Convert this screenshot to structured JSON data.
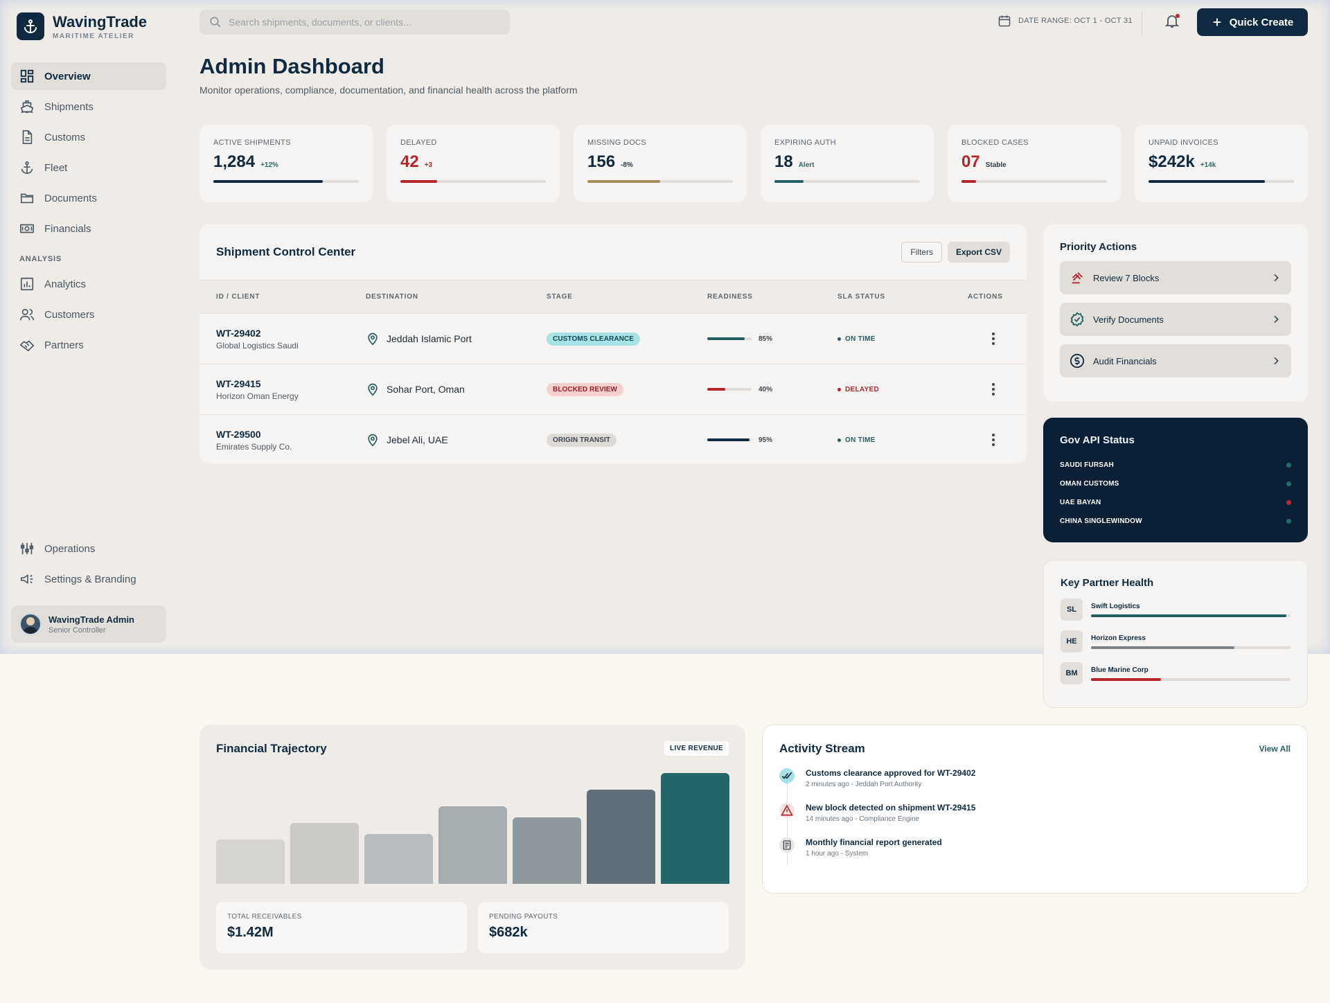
{
  "brand": {
    "name": "WavingTrade",
    "subtitle": "MARITIME ATELIER"
  },
  "sidebar": {
    "items": [
      {
        "label": "Overview",
        "icon": "dashboard-icon",
        "active": true
      },
      {
        "label": "Shipments",
        "icon": "ship-icon"
      },
      {
        "label": "Customs",
        "icon": "document-icon"
      },
      {
        "label": "Fleet",
        "icon": "anchor-icon"
      },
      {
        "label": "Documents",
        "icon": "folder-icon"
      },
      {
        "label": "Financials",
        "icon": "money-icon"
      }
    ],
    "section_label": "ANALYSIS",
    "analysis_items": [
      {
        "label": "Analytics",
        "icon": "chart-icon"
      },
      {
        "label": "Customers",
        "icon": "users-icon"
      },
      {
        "label": "Partners",
        "icon": "handshake-icon"
      }
    ],
    "bottom_items": [
      {
        "label": "Operations",
        "icon": "sliders-icon"
      },
      {
        "label": "Settings & Branding",
        "icon": "megaphone-icon"
      }
    ],
    "user": {
      "name": "WavingTrade Admin",
      "role": "Senior Controller"
    }
  },
  "topbar": {
    "search_placeholder": "Search shipments, documents, or clients...",
    "date_range": "DATE RANGE: OCT 1 - OCT 31",
    "quick_create": "Quick Create"
  },
  "page": {
    "title": "Admin Dashboard",
    "subtitle": "Monitor operations, compliance, documentation, and financial health across the platform"
  },
  "kpis": [
    {
      "label": "ACTIVE SHIPMENTS",
      "value": "1,284",
      "delta": "+12%",
      "progress": 0.75,
      "color": "#0f2a40"
    },
    {
      "label": "DELAYED",
      "value": "42",
      "delta": "+3",
      "progress": 0.25,
      "color": "#b3262b"
    },
    {
      "label": "MISSING DOCS",
      "value": "156",
      "delta": "-8%",
      "progress": 0.5,
      "color": "#a88b5c"
    },
    {
      "label": "EXPIRING AUTH",
      "value": "18",
      "delta": "Alert",
      "progress": 0.2,
      "color": "#245f63"
    },
    {
      "label": "BLOCKED CASES",
      "value": "07",
      "delta": "Stable",
      "progress": 0.1,
      "color": "#b3262b"
    },
    {
      "label": "UNPAID INVOICES",
      "value": "$242k",
      "delta": "+14k",
      "progress": 0.8,
      "color": "#0f2a40"
    }
  ],
  "control_center": {
    "title": "Shipment Control Center",
    "filters": "Filters",
    "export": "Export CSV",
    "columns": [
      "ID / CLIENT",
      "DESTINATION",
      "STAGE",
      "READINESS",
      "SLA STATUS",
      "ACTIONS"
    ],
    "rows": [
      {
        "id": "WT-29402",
        "client": "Global Logistics Saudi",
        "destination": "Jeddah Islamic Port",
        "stage": "CUSTOMS CLEARANCE",
        "readiness": 0.85,
        "readiness_label": "85%",
        "sla": "ON TIME"
      },
      {
        "id": "WT-29415",
        "client": "Horizon Oman Energy",
        "destination": "Sohar Port, Oman",
        "stage": "BLOCKED REVIEW",
        "readiness": 0.4,
        "readiness_label": "40%",
        "sla": "DELAYED"
      },
      {
        "id": "WT-29500",
        "client": "Emirates Supply Co.",
        "destination": "Jebel Ali, UAE",
        "stage": "ORIGIN TRANSIT",
        "readiness": 0.95,
        "readiness_label": "95%",
        "sla": "ON TIME"
      }
    ]
  },
  "priority_actions": {
    "title": "Priority Actions",
    "items": [
      {
        "label": "Review 7 Blocks",
        "icon": "gavel-icon"
      },
      {
        "label": "Verify Documents",
        "icon": "verified-badge-icon"
      },
      {
        "label": "Audit Financials",
        "icon": "dollar-circle-icon"
      }
    ]
  },
  "gov_api": {
    "title": "Gov API Status",
    "items": [
      {
        "label": "SAUDI FURSAH",
        "status_color": "#1f6f6d"
      },
      {
        "label": "OMAN CUSTOMS",
        "status_color": "#1f6f6d"
      },
      {
        "label": "UAE BAYAN",
        "status_color": "#c0282d"
      },
      {
        "label": "CHINA SINGLEWINDOW",
        "status_color": "#1f6f6d"
      }
    ]
  },
  "partner_health": {
    "title": "Key Partner Health",
    "items": [
      {
        "initials": "SL",
        "name": "Swift Logistics",
        "score": 0.98,
        "color": "#245f63"
      },
      {
        "initials": "HE",
        "name": "Horizon Express",
        "score": 0.72,
        "color": "#7b8288"
      },
      {
        "initials": "BM",
        "name": "Blue Marine Corp",
        "score": 0.35,
        "color": "#b3262b"
      }
    ]
  },
  "financial": {
    "title": "Financial Trajectory",
    "badge": "LIVE REVENUE",
    "chart_data": {
      "type": "bar",
      "values": [
        40,
        55,
        45,
        70,
        60,
        85,
        100
      ],
      "colors": [
        "#d5d3cf",
        "#cbcac6",
        "#b8bcbe",
        "#a5adb0",
        "#8f999d",
        "#5f6d79",
        "#236569"
      ]
    },
    "cards": [
      {
        "label": "TOTAL RECEIVABLES",
        "value": "$1.42M"
      },
      {
        "label": "PENDING PAYOUTS",
        "value": "$682k"
      }
    ]
  },
  "activity": {
    "title": "Activity Stream",
    "view_all": "View All",
    "items": [
      {
        "title": "Customs clearance approved for WT-29402",
        "meta": "2 minutes ago - Jeddah Port Authority",
        "icon": "double-check-icon"
      },
      {
        "title": "New block detected on shipment WT-29415",
        "meta": "14 minutes ago - Compliance Engine",
        "icon": "warning-icon"
      },
      {
        "title": "Monthly financial report generated",
        "meta": "1 hour ago - System",
        "icon": "report-icon"
      }
    ]
  }
}
